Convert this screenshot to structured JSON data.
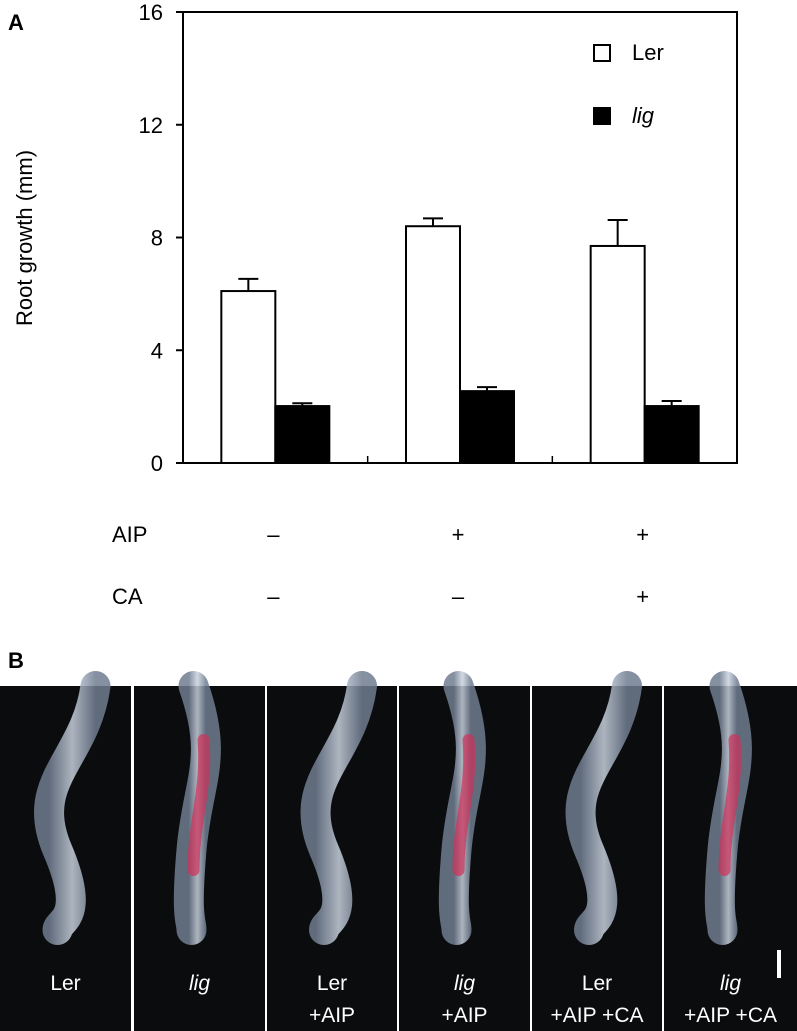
{
  "panel_a": {
    "label": "A"
  },
  "chart_data": {
    "type": "bar",
    "ylabel": "Root growth (mm)",
    "ylim": [
      0,
      16
    ],
    "yticks": [
      0,
      4,
      8,
      12,
      16
    ],
    "series": [
      {
        "name": "Ler",
        "color": "#ffffff",
        "values": [
          6.1,
          8.4,
          7.7
        ],
        "errors": [
          0.43,
          0.28,
          0.92
        ]
      },
      {
        "name": "lig",
        "color": "#000000",
        "values": [
          2.02,
          2.55,
          2.02
        ],
        "errors": [
          0.1,
          0.14,
          0.18
        ]
      }
    ],
    "conditions": [
      {
        "label": "AIP",
        "values": [
          "–",
          "+",
          "+"
        ]
      },
      {
        "label": "CA",
        "values": [
          "–",
          "–",
          "+"
        ]
      }
    ]
  },
  "panel_b": {
    "label": "B",
    "photos": [
      {
        "lines": [
          "Ler"
        ]
      },
      {
        "lines": [
          "lig"
        ]
      },
      {
        "lines": [
          "Ler",
          "+AIP"
        ]
      },
      {
        "lines": [
          "lig",
          "+AIP"
        ]
      },
      {
        "lines": [
          "Ler",
          "+AIP +CA"
        ]
      },
      {
        "lines": [
          "lig",
          "+AIP +CA"
        ]
      }
    ]
  }
}
